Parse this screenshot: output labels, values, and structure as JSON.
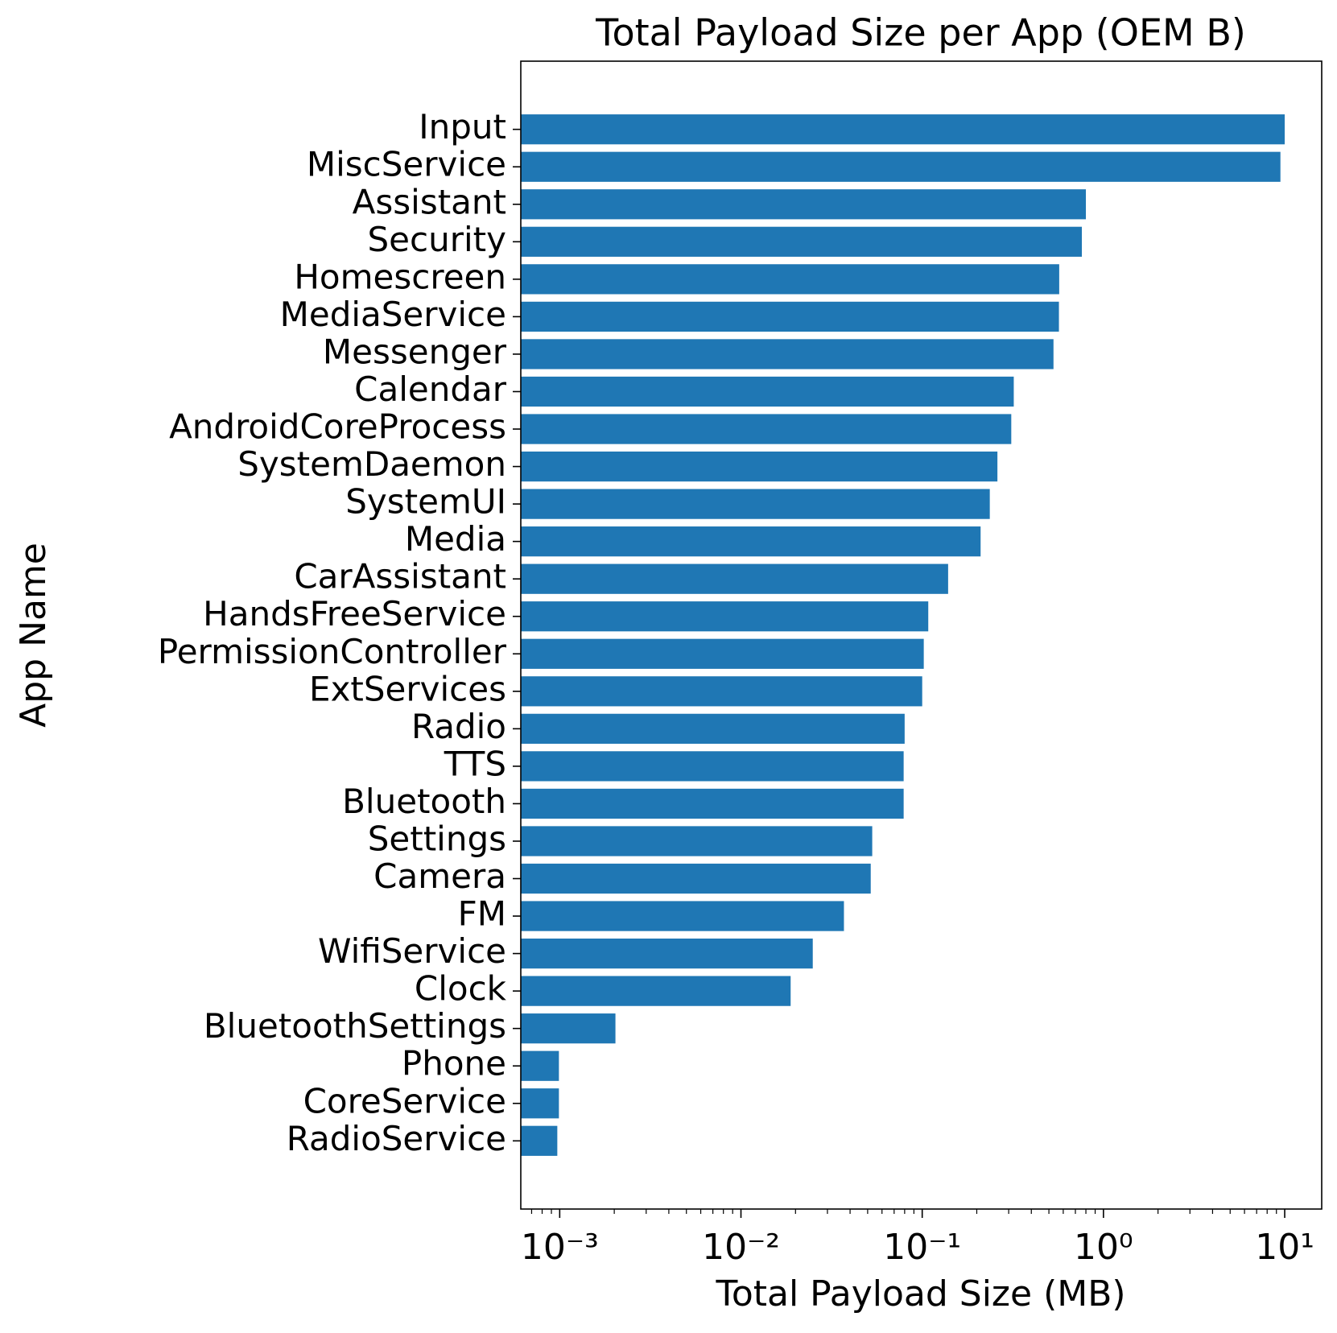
{
  "chart_data": {
    "type": "barh",
    "title": "Total Payload Size per App (OEM B)",
    "xlabel": "Total Payload Size (MB)",
    "ylabel": "App Name",
    "categories": [
      "Input",
      "MiscService",
      "Assistant",
      "Security",
      "Homescreen",
      "MediaService",
      "Messenger",
      "Calendar",
      "AndroidCoreProcess",
      "SystemDaemon",
      "SystemUI",
      "Media",
      "CarAssistant",
      "HandsFreeService",
      "PermissionController",
      "ExtServices",
      "Radio",
      "TTS",
      "Bluetooth",
      "Settings",
      "Camera",
      "FM",
      "WifiService",
      "Clock",
      "BluetoothSettings",
      "Phone",
      "CoreService",
      "RadioService"
    ],
    "values": [
      10.0,
      9.47,
      0.8,
      0.76,
      0.57,
      0.568,
      0.53,
      0.32,
      0.31,
      0.26,
      0.236,
      0.21,
      0.139,
      0.108,
      0.102,
      0.1,
      0.08,
      0.079,
      0.079,
      0.053,
      0.052,
      0.037,
      0.0249,
      0.0188,
      0.00203,
      0.00099,
      0.00099,
      0.00097
    ],
    "color": "#1f77b4",
    "xscale": "log",
    "xlim": [
      0.00061,
      16
    ],
    "xticks": [
      {
        "value": 0.001,
        "label": "10⁻³"
      },
      {
        "value": 0.01,
        "label": "10⁻²"
      },
      {
        "value": 0.1,
        "label": "10⁻¹"
      },
      {
        "value": 1,
        "label": "10⁰"
      },
      {
        "value": 10,
        "label": "10¹"
      }
    ],
    "minor_ticks": true
  }
}
